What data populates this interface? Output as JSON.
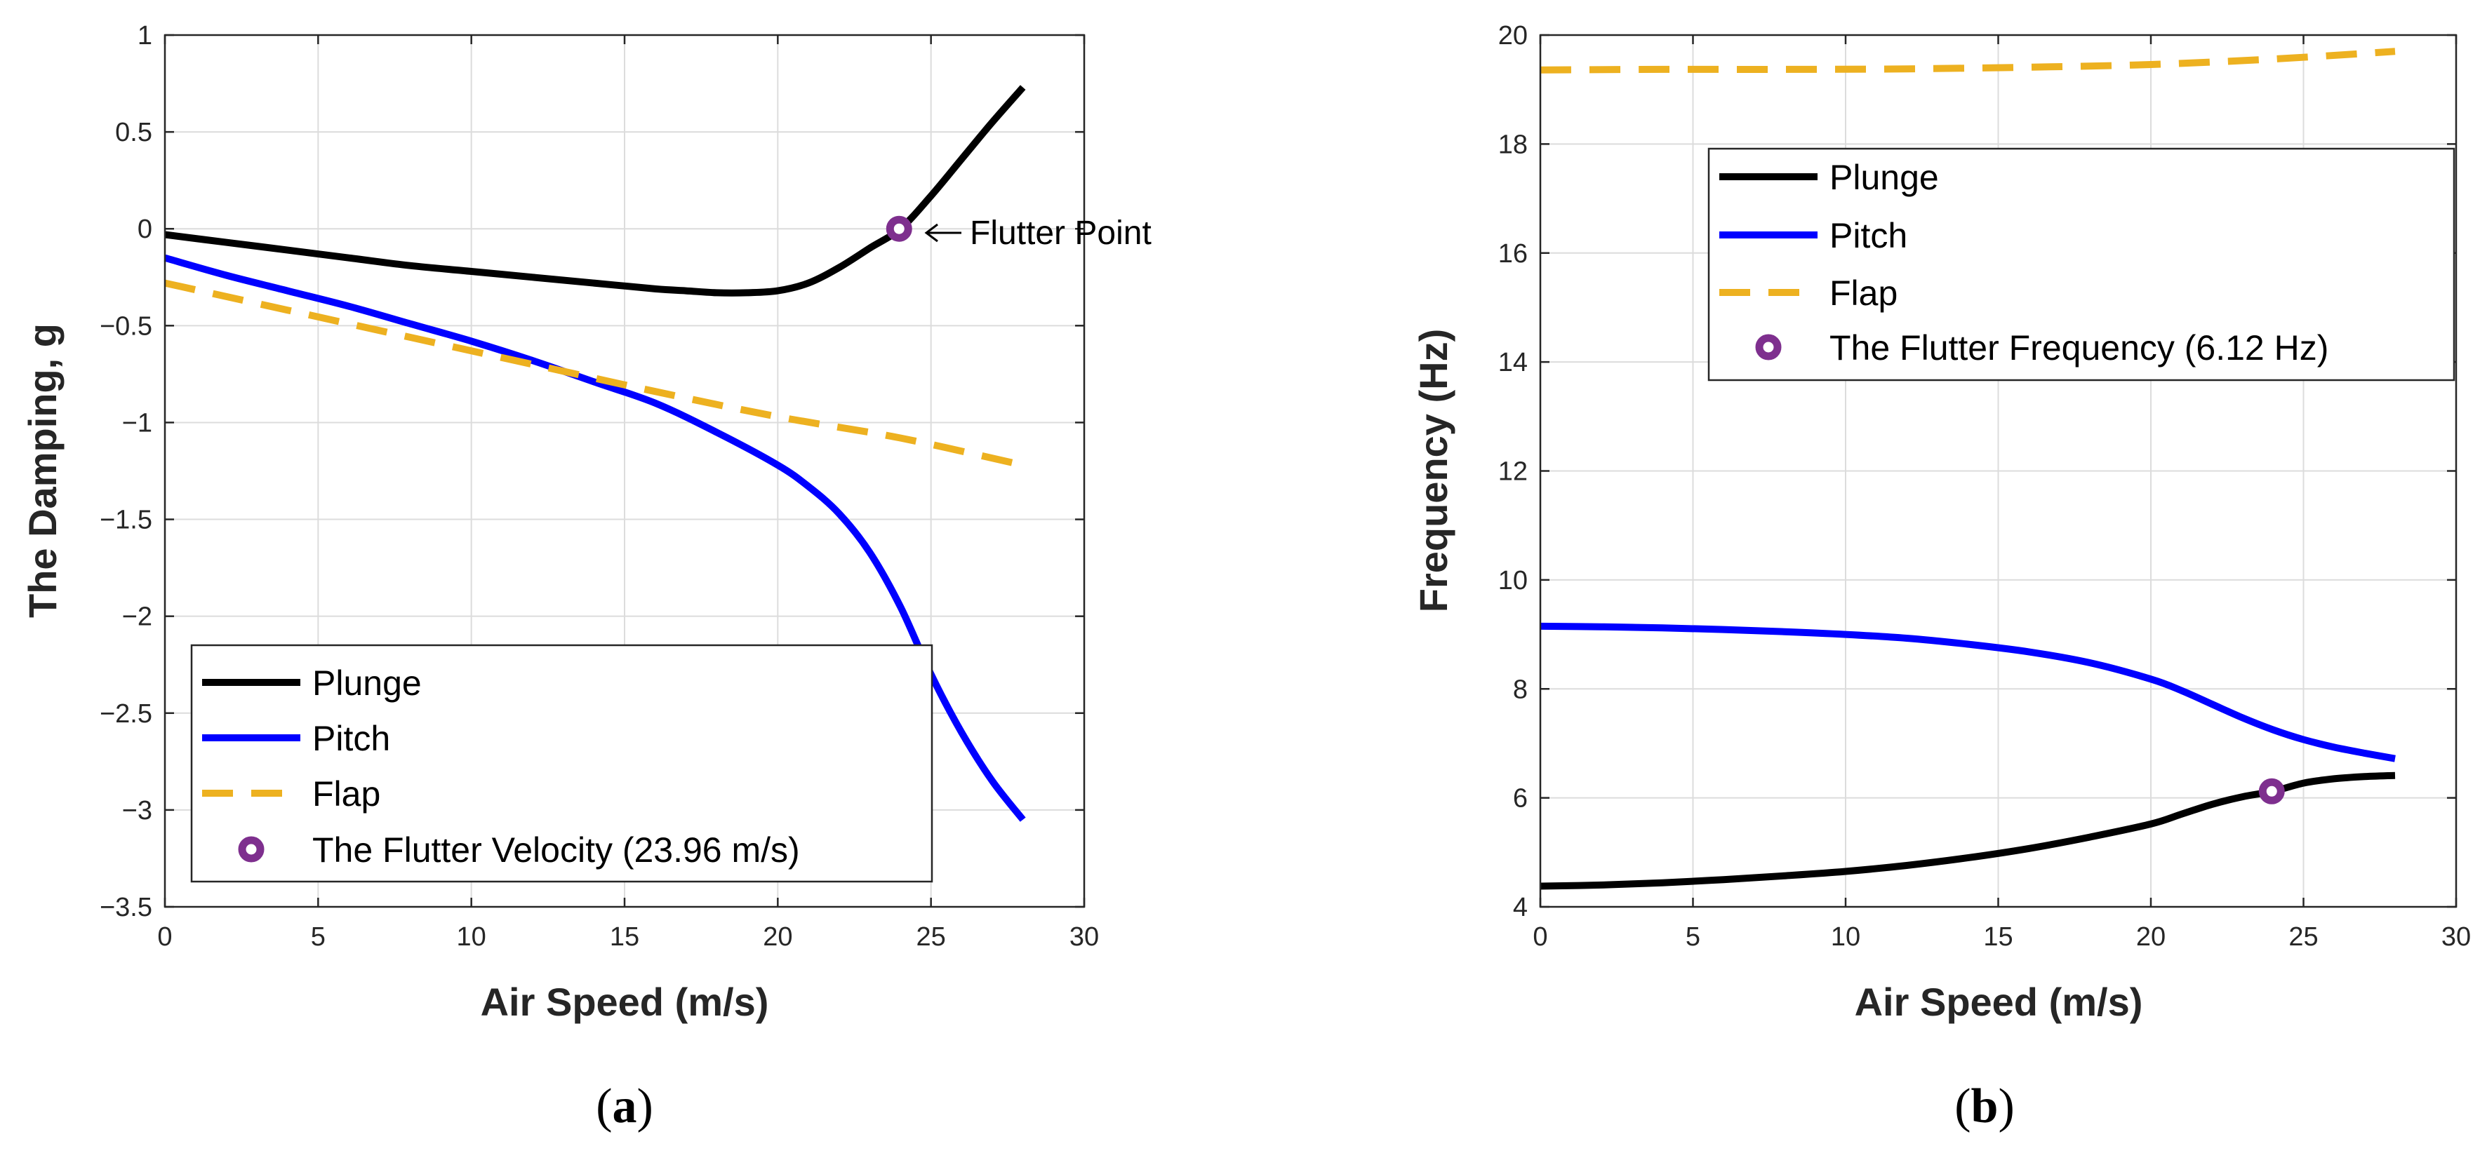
{
  "chart_data": [
    {
      "type": "line",
      "panel_caption": "a",
      "xlabel": "Air Speed (m/s)",
      "ylabel": "The Damping, g",
      "xlim": [
        0,
        30
      ],
      "ylim": [
        -3.5,
        1
      ],
      "xticks": [
        0,
        5,
        10,
        15,
        20,
        25,
        30
      ],
      "yticks": [
        -3.5,
        -3,
        -2.5,
        -2,
        -1.5,
        -1,
        -0.5,
        0,
        0.5,
        1
      ],
      "ytick_labels": [
        "−3.5",
        "−3",
        "−2.5",
        "−2",
        "−1.5",
        "−1",
        "−0.5",
        "0",
        "0.5",
        "1"
      ],
      "xtick_labels": [
        "0",
        "5",
        "10",
        "15",
        "20",
        "25",
        "30"
      ],
      "grid": true,
      "legend_position": "bottom-left",
      "series": [
        {
          "name": "Plunge",
          "color": "#000000",
          "style": "solid",
          "x": [
            0,
            2,
            4,
            6,
            8,
            10,
            12,
            14,
            16,
            17,
            18,
            19,
            20,
            21,
            22,
            23,
            24,
            25,
            26,
            27,
            28
          ],
          "y": [
            -0.03,
            -0.07,
            -0.11,
            -0.15,
            -0.19,
            -0.22,
            -0.25,
            -0.28,
            -0.31,
            -0.32,
            -0.33,
            -0.33,
            -0.32,
            -0.28,
            -0.2,
            -0.1,
            0.0,
            0.17,
            0.36,
            0.55,
            0.73
          ]
        },
        {
          "name": "Pitch",
          "color": "#0000ff",
          "style": "solid",
          "x": [
            0,
            2,
            4,
            6,
            8,
            10,
            12,
            14,
            16,
            18,
            20,
            21,
            22,
            23,
            24,
            25,
            26,
            27,
            28
          ],
          "y": [
            -0.15,
            -0.24,
            -0.32,
            -0.4,
            -0.49,
            -0.58,
            -0.68,
            -0.79,
            -0.9,
            -1.05,
            -1.22,
            -1.33,
            -1.47,
            -1.67,
            -1.95,
            -2.3,
            -2.6,
            -2.85,
            -3.05
          ]
        },
        {
          "name": "Flap",
          "color": "#edb120",
          "style": "dashed",
          "x": [
            0,
            4,
            8,
            12,
            16,
            20,
            24,
            28
          ],
          "y": [
            -0.28,
            -0.42,
            -0.56,
            -0.7,
            -0.84,
            -0.97,
            -1.08,
            -1.22
          ]
        },
        {
          "name": "The Flutter Velocity (23.96 m/s)",
          "color": "#7e2f8e",
          "style": "marker",
          "x": [
            23.96
          ],
          "y": [
            0.0
          ]
        }
      ],
      "annotation": {
        "text": "Flutter Point",
        "x": 23.96,
        "y": 0.0
      }
    },
    {
      "type": "line",
      "panel_caption": "b",
      "xlabel": "Air Speed (m/s)",
      "ylabel": "Frequency (Hz)",
      "xlim": [
        0,
        30
      ],
      "ylim": [
        4,
        20
      ],
      "xticks": [
        0,
        5,
        10,
        15,
        20,
        25,
        30
      ],
      "yticks": [
        4,
        6,
        8,
        10,
        12,
        14,
        16,
        18,
        20
      ],
      "ytick_labels": [
        "4",
        "6",
        "8",
        "10",
        "12",
        "14",
        "16",
        "18",
        "20"
      ],
      "xtick_labels": [
        "0",
        "5",
        "10",
        "15",
        "20",
        "25",
        "30"
      ],
      "grid": true,
      "legend_position": "top-right",
      "series": [
        {
          "name": "Plunge",
          "color": "#000000",
          "style": "solid",
          "x": [
            0,
            2,
            4,
            6,
            8,
            10,
            12,
            14,
            16,
            18,
            20,
            21,
            22,
            23,
            24,
            25,
            26,
            27,
            28
          ],
          "y": [
            4.38,
            4.4,
            4.44,
            4.5,
            4.57,
            4.65,
            4.76,
            4.9,
            5.07,
            5.28,
            5.52,
            5.7,
            5.88,
            6.02,
            6.12,
            6.27,
            6.35,
            6.39,
            6.41
          ]
        },
        {
          "name": "Pitch",
          "color": "#0000ff",
          "style": "solid",
          "x": [
            0,
            2,
            4,
            6,
            8,
            10,
            12,
            14,
            16,
            18,
            20,
            21,
            22,
            23,
            24,
            25,
            26,
            27,
            28
          ],
          "y": [
            9.15,
            9.14,
            9.12,
            9.09,
            9.05,
            9.0,
            8.93,
            8.82,
            8.68,
            8.48,
            8.18,
            7.97,
            7.72,
            7.47,
            7.25,
            7.07,
            6.93,
            6.82,
            6.72
          ]
        },
        {
          "name": "Flap",
          "color": "#edb120",
          "style": "dashed",
          "x": [
            0,
            4,
            8,
            12,
            16,
            20,
            24,
            28
          ],
          "y": [
            19.36,
            19.37,
            19.37,
            19.38,
            19.41,
            19.46,
            19.56,
            19.7
          ]
        },
        {
          "name": "The Flutter Frequency (6.12 Hz)",
          "color": "#7e2f8e",
          "style": "marker",
          "x": [
            23.96
          ],
          "y": [
            6.12
          ]
        }
      ]
    }
  ]
}
